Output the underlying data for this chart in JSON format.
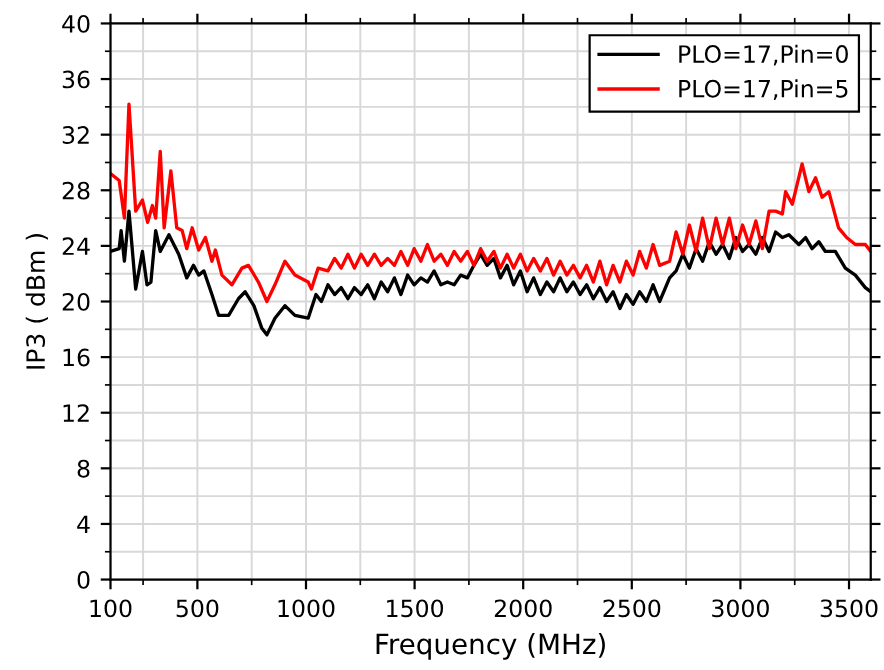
{
  "chart_data": {
    "type": "line",
    "xlabel": "Frequency (MHz)",
    "ylabel": "IP3 ( dBm )",
    "xlim": [
      100,
      3600
    ],
    "ylim": [
      0,
      40
    ],
    "xticks": [
      100,
      500,
      1000,
      1500,
      2000,
      2500,
      3000,
      3500
    ],
    "yticks": [
      0,
      4,
      8,
      12,
      16,
      20,
      24,
      28,
      32,
      36,
      40
    ],
    "grid": true,
    "legend": "top right",
    "line_style": "solid",
    "marker": "none",
    "series": [
      {
        "name": "PLO=17,Pin=0",
        "color": "#000000",
        "x": [
          100,
          140,
          149,
          164,
          185,
          216,
          247,
          268,
          286,
          308,
          329,
          369,
          414,
          451,
          482,
          506,
          530,
          567,
          598,
          644,
          689,
          720,
          760,
          796,
          820,
          857,
          903,
          949,
          1010,
          1046,
          1071,
          1101,
          1132,
          1162,
          1193,
          1223,
          1254,
          1284,
          1315,
          1346,
          1376,
          1407,
          1437,
          1468,
          1498,
          1529,
          1559,
          1590,
          1621,
          1651,
          1682,
          1712,
          1743,
          1773,
          1804,
          1834,
          1865,
          1895,
          1926,
          1956,
          1987,
          2018,
          2048,
          2079,
          2109,
          2140,
          2170,
          2201,
          2231,
          2262,
          2292,
          2323,
          2353,
          2384,
          2414,
          2445,
          2475,
          2506,
          2536,
          2567,
          2598,
          2628,
          2674,
          2704,
          2735,
          2765,
          2796,
          2826,
          2857,
          2888,
          2918,
          2949,
          2979,
          3010,
          3040,
          3071,
          3101,
          3132,
          3162,
          3193,
          3223,
          3269,
          3300,
          3330,
          3361,
          3391,
          3437,
          3483,
          3529,
          3575,
          3600
        ],
        "values": [
          23.6,
          23.8,
          25.1,
          22.9,
          26.5,
          20.9,
          23.6,
          21.2,
          21.4,
          25.1,
          23.6,
          24.8,
          23.4,
          21.7,
          22.6,
          21.9,
          22.2,
          20.5,
          19.0,
          19.0,
          20.2,
          20.7,
          19.7,
          18.1,
          17.6,
          18.8,
          19.7,
          19.0,
          18.8,
          20.5,
          20.0,
          21.2,
          20.5,
          21.0,
          20.2,
          21.0,
          20.5,
          21.2,
          20.2,
          21.4,
          20.7,
          21.7,
          20.5,
          21.9,
          21.2,
          21.7,
          21.4,
          22.2,
          21.2,
          21.4,
          21.2,
          21.9,
          21.7,
          22.6,
          23.4,
          22.6,
          23.1,
          21.7,
          22.6,
          21.2,
          22.2,
          20.7,
          21.7,
          20.5,
          21.4,
          20.7,
          21.7,
          20.7,
          21.4,
          20.5,
          21.2,
          20.2,
          21.0,
          20.0,
          20.7,
          19.5,
          20.5,
          19.8,
          20.7,
          20.0,
          21.2,
          20.0,
          21.7,
          22.2,
          23.4,
          22.4,
          23.8,
          22.9,
          24.3,
          23.4,
          24.1,
          23.1,
          24.6,
          23.6,
          24.1,
          23.4,
          24.6,
          23.6,
          25.0,
          24.6,
          24.8,
          24.1,
          24.6,
          23.8,
          24.3,
          23.6,
          23.6,
          22.4,
          21.9,
          21.0,
          20.7
        ]
      },
      {
        "name": "PLO=17,Pin=5",
        "color": "#ff0000",
        "x": [
          100,
          140,
          164,
          185,
          216,
          247,
          271,
          293,
          308,
          329,
          347,
          378,
          405,
          430,
          451,
          476,
          506,
          537,
          567,
          583,
          613,
          659,
          705,
          735,
          781,
          820,
          857,
          903,
          949,
          1010,
          1025,
          1056,
          1101,
          1132,
          1162,
          1193,
          1223,
          1254,
          1284,
          1315,
          1346,
          1376,
          1407,
          1437,
          1468,
          1498,
          1529,
          1559,
          1590,
          1621,
          1651,
          1682,
          1712,
          1743,
          1773,
          1804,
          1834,
          1865,
          1895,
          1926,
          1956,
          1987,
          2018,
          2048,
          2079,
          2109,
          2140,
          2170,
          2201,
          2231,
          2262,
          2292,
          2323,
          2353,
          2384,
          2414,
          2445,
          2475,
          2506,
          2536,
          2567,
          2598,
          2628,
          2674,
          2704,
          2735,
          2765,
          2796,
          2826,
          2857,
          2888,
          2918,
          2949,
          2979,
          3010,
          3040,
          3071,
          3101,
          3132,
          3162,
          3193,
          3208,
          3239,
          3284,
          3315,
          3346,
          3376,
          3407,
          3452,
          3489,
          3529,
          3575,
          3600
        ],
        "values": [
          29.2,
          28.7,
          26.0,
          34.2,
          26.5,
          27.3,
          25.7,
          26.9,
          26.0,
          30.8,
          25.3,
          29.4,
          25.3,
          25.1,
          23.8,
          25.3,
          23.7,
          24.6,
          22.9,
          23.7,
          21.9,
          21.2,
          22.4,
          22.6,
          21.4,
          20.0,
          21.2,
          22.9,
          21.9,
          21.4,
          20.9,
          22.4,
          22.2,
          23.1,
          22.4,
          23.4,
          22.4,
          23.4,
          22.6,
          23.4,
          22.6,
          23.1,
          22.6,
          23.6,
          22.6,
          23.8,
          22.9,
          24.1,
          22.9,
          23.4,
          22.6,
          23.6,
          22.9,
          23.6,
          22.6,
          23.8,
          22.9,
          23.6,
          22.4,
          23.4,
          22.4,
          23.4,
          22.2,
          23.1,
          22.2,
          23.1,
          21.9,
          22.9,
          21.9,
          22.6,
          21.7,
          22.6,
          21.4,
          22.9,
          21.2,
          22.6,
          21.4,
          22.9,
          21.9,
          23.6,
          22.4,
          24.1,
          22.6,
          22.9,
          25.0,
          23.4,
          25.5,
          23.6,
          26.0,
          23.8,
          26.0,
          24.1,
          26.0,
          23.8,
          25.5,
          24.1,
          25.8,
          23.8,
          26.5,
          26.5,
          26.3,
          27.9,
          27.0,
          29.9,
          27.9,
          28.9,
          27.5,
          27.9,
          25.3,
          24.6,
          24.1,
          24.1,
          23.6
        ]
      }
    ]
  }
}
